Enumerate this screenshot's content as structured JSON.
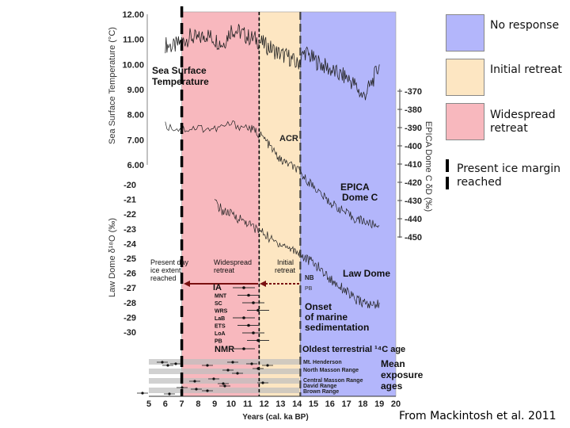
{
  "legend": {
    "items": [
      {
        "label": "No response",
        "color": "#b3b6fb"
      },
      {
        "label": "Initial retreat",
        "color": "#fde6c2"
      },
      {
        "label": "Widespread retreat",
        "color": "#f8b8be"
      },
      {
        "label": "Present ice margin reached",
        "color": "#000000"
      }
    ]
  },
  "credit": {
    "text": "From Mackintosh et al. 2011"
  },
  "chart_data": {
    "type": "line",
    "xlabel": "Years (cal. ka BP)",
    "xlim": [
      5,
      20
    ],
    "x_ticks": [
      "5",
      "6",
      "7",
      "8",
      "9",
      "10",
      "11",
      "12",
      "13",
      "14",
      "15",
      "16",
      "17",
      "18",
      "19",
      "20"
    ],
    "shaded_periods": [
      {
        "label": "Widespread retreat",
        "x0": 7,
        "x1": 11.7,
        "color": "#f8b8be"
      },
      {
        "label": "Initial retreat",
        "x0": 11.7,
        "x1": 14.2,
        "color": "#fde6c2"
      },
      {
        "label": "No response",
        "x0": 14.2,
        "x1": 20,
        "color": "#b3b6fb"
      }
    ],
    "axes": [
      {
        "name": "sst",
        "ylabel": "Sea Surface Temperature (°C)",
        "ticks": [
          "12.00",
          "11.00",
          "10.00",
          "9.00",
          "8.00",
          "7.00",
          "6.00"
        ],
        "range": [
          6,
          12
        ]
      },
      {
        "name": "epica",
        "ylabel": "EPICA Dome C δD (‰)",
        "ticks": [
          "-370",
          "-380",
          "-390",
          "-400",
          "-410",
          "-420",
          "-430",
          "-440",
          "-450"
        ],
        "range": [
          -450,
          -370
        ]
      },
      {
        "name": "lawdome",
        "ylabel": "Law Dome δ¹⁸O (‰)",
        "ticks": [
          "-20",
          "-21",
          "-22",
          "-23",
          "-24",
          "-25",
          "-26",
          "-27",
          "-28",
          "-29",
          "-30"
        ],
        "range": [
          -30,
          -20
        ]
      }
    ],
    "series": [
      {
        "name": "Sea Surface Temperature",
        "axis": "sst",
        "x": [
          6.0,
          6.5,
          7.0,
          7.5,
          8.0,
          8.5,
          9.0,
          9.5,
          10.0,
          10.5,
          11.0,
          11.5,
          12.0,
          12.5,
          13.0,
          13.5,
          14.0,
          14.5,
          15.0,
          15.5,
          16.0,
          16.5,
          17.0,
          17.5,
          18.0,
          18.5,
          19.0
        ],
        "y": [
          10.8,
          10.7,
          10.9,
          11.1,
          11.0,
          11.2,
          11.0,
          10.8,
          11.4,
          11.3,
          11.1,
          11.0,
          10.8,
          10.6,
          10.4,
          10.3,
          10.0,
          10.5,
          10.2,
          10.0,
          9.8,
          9.6,
          9.5,
          9.2,
          8.7,
          9.2,
          10.0
        ]
      },
      {
        "name": "EPICA Dome C",
        "axis": "epica",
        "x": [
          6,
          7,
          8,
          9,
          10,
          11,
          11.5,
          12,
          12.5,
          13,
          13.5,
          14,
          14.5,
          15,
          15.5,
          16,
          16.5,
          17,
          17.5,
          18,
          18.5,
          19
        ],
        "y": [
          -389,
          -391,
          -390,
          -391,
          -388,
          -390,
          -392,
          -396,
          -402,
          -408,
          -410,
          -413,
          -418,
          -422,
          -427,
          -431,
          -434,
          -437,
          -440,
          -441,
          -443,
          -444
        ]
      },
      {
        "name": "Law Dome",
        "axis": "lawdome",
        "x": [
          9,
          9.5,
          10,
          10.5,
          11,
          11.5,
          12,
          12.5,
          13,
          13.5,
          14,
          14.5,
          15,
          15.5,
          16,
          16.5,
          17,
          17.5,
          18,
          18.5,
          19
        ],
        "y": [
          -21.2,
          -21.8,
          -22.0,
          -22.3,
          -22.6,
          -23.0,
          -23.3,
          -23.8,
          -24.0,
          -24.3,
          -24.5,
          -25.0,
          -25.3,
          -25.8,
          -26.4,
          -26.8,
          -27.2,
          -27.8,
          -28.0,
          -28.2,
          -28.0
        ]
      }
    ],
    "annotations": [
      "Sea Surface Temperature",
      "ACR",
      "EPICA Dome C",
      "Law Dome",
      "Present day ice extent reached",
      "Widespread retreat",
      "Initial retreat",
      "NB",
      "PB",
      "Onset of marine sedimentation",
      "Oldest terrestrial ¹⁴C age",
      "Mean exposure ages"
    ],
    "ages": {
      "sites": [
        "IA",
        "MNT",
        "SC",
        "WRS",
        "LaB",
        "ETS",
        "LoA",
        "PB",
        "NMR"
      ],
      "exposure_sites": [
        "Mt. Henderson",
        "North Masson Range",
        "Central Masson Range",
        "David Range",
        "Brown Range"
      ]
    }
  }
}
